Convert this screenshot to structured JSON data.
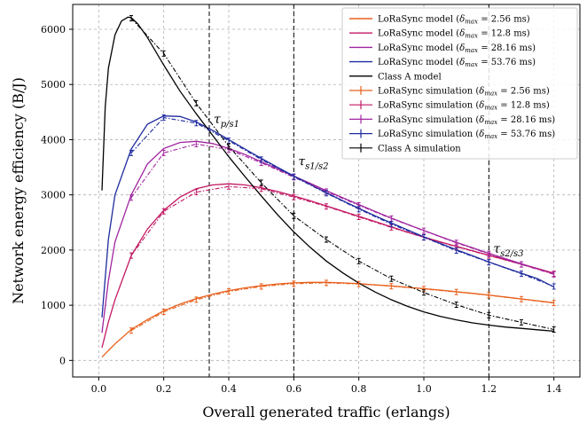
{
  "chart_data": {
    "type": "line",
    "xlabel": "Overall generated traffic (erlangs)",
    "ylabel": "Network energy efficiency (B/J)",
    "xlim": [
      -0.08,
      1.48
    ],
    "ylim": [
      -300,
      6450
    ],
    "xticks": [
      0.0,
      0.2,
      0.4,
      0.6,
      0.8,
      1.0,
      1.2,
      1.4
    ],
    "xtick_labels": [
      "0.0",
      "0.2",
      "0.4",
      "0.6",
      "0.8",
      "1.0",
      "1.2",
      "1.4"
    ],
    "yticks": [
      0,
      1000,
      2000,
      3000,
      4000,
      5000,
      6000
    ],
    "ytick_labels": [
      "0",
      "1000",
      "2000",
      "3000",
      "4000",
      "5000",
      "6000"
    ],
    "grid": true,
    "legend_position": "top-right",
    "vlines": [
      {
        "x": 0.34,
        "label_main": "τ",
        "label_sub": "p/s1",
        "label_y": 4300
      },
      {
        "x": 0.6,
        "label_main": "τ",
        "label_sub": "s1/s2",
        "label_y": 3530
      },
      {
        "x": 1.2,
        "label_main": "τ",
        "label_sub": "s2/s3",
        "label_y": 1950
      }
    ],
    "series": [
      {
        "name": "LoRaSync model",
        "delta": "2.56 ms",
        "kind": "model",
        "color": "#e8601c",
        "x": [
          0.01,
          0.03,
          0.05,
          0.1,
          0.15,
          0.2,
          0.25,
          0.3,
          0.35,
          0.4,
          0.45,
          0.5,
          0.55,
          0.6,
          0.65,
          0.7,
          0.75,
          0.8,
          0.85,
          0.9,
          0.95,
          1.0,
          1.05,
          1.1,
          1.15,
          1.2,
          1.25,
          1.3,
          1.35,
          1.4
        ],
        "y": [
          60,
          180,
          300,
          560,
          740,
          900,
          1020,
          1120,
          1200,
          1265,
          1315,
          1355,
          1385,
          1405,
          1415,
          1415,
          1405,
          1390,
          1370,
          1350,
          1325,
          1300,
          1275,
          1245,
          1215,
          1185,
          1150,
          1115,
          1080,
          1045
        ]
      },
      {
        "name": "LoRaSync model",
        "delta": "12.8 ms",
        "kind": "model",
        "color": "#c21863",
        "x": [
          0.01,
          0.03,
          0.05,
          0.1,
          0.15,
          0.2,
          0.25,
          0.3,
          0.35,
          0.4,
          0.45,
          0.5,
          0.55,
          0.6,
          0.65,
          0.7,
          0.75,
          0.8,
          0.85,
          0.9,
          0.95,
          1.0,
          1.05,
          1.1,
          1.15,
          1.2,
          1.25,
          1.3,
          1.35,
          1.4
        ],
        "y": [
          230,
          700,
          1100,
          1900,
          2380,
          2720,
          2960,
          3110,
          3180,
          3200,
          3180,
          3130,
          3060,
          2980,
          2895,
          2800,
          2705,
          2610,
          2515,
          2420,
          2325,
          2235,
          2150,
          2065,
          1985,
          1905,
          1825,
          1745,
          1665,
          1580
        ]
      },
      {
        "name": "LoRaSync model",
        "delta": "28.16 ms",
        "kind": "model",
        "color": "#a0249f",
        "x": [
          0.01,
          0.03,
          0.05,
          0.1,
          0.15,
          0.2,
          0.25,
          0.3,
          0.35,
          0.4,
          0.45,
          0.5,
          0.55,
          0.6,
          0.65,
          0.7,
          0.75,
          0.8,
          0.85,
          0.9,
          0.95,
          1.0,
          1.05,
          1.1,
          1.15,
          1.2,
          1.25,
          1.3,
          1.35,
          1.4
        ],
        "y": [
          500,
          1450,
          2150,
          3000,
          3560,
          3840,
          3950,
          3970,
          3930,
          3840,
          3730,
          3600,
          3470,
          3340,
          3210,
          3075,
          2950,
          2825,
          2700,
          2580,
          2465,
          2355,
          2245,
          2140,
          2040,
          1940,
          1845,
          1750,
          1660,
          1570
        ]
      },
      {
        "name": "LoRaSync model",
        "delta": "53.76 ms",
        "kind": "model",
        "color": "#1e2a9e",
        "x": [
          0.01,
          0.03,
          0.05,
          0.1,
          0.15,
          0.2,
          0.25,
          0.3,
          0.35,
          0.4,
          0.45,
          0.5,
          0.55,
          0.6,
          0.65,
          0.7,
          0.75,
          0.8,
          0.85,
          0.9,
          0.95,
          1.0,
          1.05,
          1.1,
          1.15,
          1.2,
          1.25,
          1.3,
          1.35,
          1.4
        ],
        "y": [
          780,
          2200,
          3000,
          3830,
          4280,
          4430,
          4420,
          4320,
          4170,
          4000,
          3830,
          3660,
          3500,
          3340,
          3190,
          3040,
          2895,
          2755,
          2620,
          2490,
          2365,
          2240,
          2120,
          2005,
          1895,
          1785,
          1680,
          1580,
          1480,
          1330
        ]
      },
      {
        "name": "Class A model",
        "delta": "",
        "kind": "model",
        "color": "#000000",
        "x": [
          0.01,
          0.02,
          0.03,
          0.05,
          0.07,
          0.09,
          0.1,
          0.12,
          0.15,
          0.2,
          0.25,
          0.3,
          0.35,
          0.4,
          0.45,
          0.5,
          0.55,
          0.6,
          0.65,
          0.7,
          0.75,
          0.8,
          0.85,
          0.9,
          0.95,
          1.0,
          1.05,
          1.1,
          1.15,
          1.2,
          1.25,
          1.3,
          1.35,
          1.4
        ],
        "y": [
          3080,
          4600,
          5300,
          5900,
          6150,
          6220,
          6210,
          6100,
          5850,
          5350,
          4880,
          4470,
          4080,
          3690,
          3330,
          2980,
          2640,
          2330,
          2050,
          1800,
          1590,
          1400,
          1240,
          1100,
          980,
          880,
          800,
          735,
          680,
          640,
          605,
          580,
          555,
          530
        ]
      },
      {
        "name": "LoRaSync simulation",
        "delta": "2.56 ms",
        "kind": "simulation",
        "color": "#e8601c",
        "x": [
          0.1,
          0.2,
          0.3,
          0.4,
          0.5,
          0.6,
          0.7,
          0.8,
          0.9,
          1.0,
          1.1,
          1.2,
          1.3,
          1.4
        ],
        "y": [
          540,
          880,
          1100,
          1250,
          1340,
          1390,
          1405,
          1385,
          1345,
          1295,
          1240,
          1180,
          1110,
          1040
        ]
      },
      {
        "name": "LoRaSync simulation",
        "delta": "12.8 ms",
        "kind": "simulation",
        "color": "#c21863",
        "x": [
          0.1,
          0.2,
          0.3,
          0.4,
          0.5,
          0.6,
          0.7,
          0.8,
          0.9,
          1.0,
          1.1,
          1.2,
          1.3,
          1.4
        ],
        "y": [
          1900,
          2700,
          3050,
          3150,
          3110,
          2960,
          2790,
          2600,
          2410,
          2230,
          2060,
          1900,
          1740,
          1570
        ]
      },
      {
        "name": "LoRaSync simulation",
        "delta": "28.16 ms",
        "kind": "simulation",
        "color": "#a0249f",
        "x": [
          0.1,
          0.2,
          0.3,
          0.4,
          0.5,
          0.6,
          0.7,
          0.8,
          0.9,
          1.0,
          1.1,
          1.2,
          1.3,
          1.4
        ],
        "y": [
          2950,
          3760,
          3920,
          3820,
          3580,
          3320,
          3060,
          2810,
          2570,
          2350,
          2130,
          1930,
          1740,
          1560
        ]
      },
      {
        "name": "LoRaSync simulation",
        "delta": "53.76 ms",
        "kind": "simulation",
        "color": "#1e2a9e",
        "x": [
          0.1,
          0.2,
          0.3,
          0.4,
          0.5,
          0.6,
          0.7,
          0.8,
          0.9,
          1.0,
          1.1,
          1.2,
          1.3,
          1.4
        ],
        "y": [
          3760,
          4400,
          4300,
          3980,
          3640,
          3330,
          3030,
          2740,
          2470,
          2230,
          1990,
          1780,
          1570,
          1340
        ]
      },
      {
        "name": "Class A simulation",
        "delta": "",
        "kind": "simulation",
        "color": "#000000",
        "x": [
          0.1,
          0.2,
          0.3,
          0.4,
          0.5,
          0.6,
          0.7,
          0.8,
          0.9,
          1.0,
          1.1,
          1.2,
          1.3,
          1.4
        ],
        "y": [
          6200,
          5560,
          4660,
          3880,
          3220,
          2620,
          2190,
          1800,
          1480,
          1230,
          1010,
          820,
          690,
          560
        ]
      }
    ],
    "legend": [
      {
        "name": "LoRaSync model",
        "delta": "2.56 ms",
        "color": "#e8601c",
        "kind": "model"
      },
      {
        "name": "LoRaSync model",
        "delta": "12.8 ms",
        "color": "#c21863",
        "kind": "model"
      },
      {
        "name": "LoRaSync model",
        "delta": "28.16 ms",
        "color": "#a0249f",
        "kind": "model"
      },
      {
        "name": "LoRaSync model",
        "delta": "53.76 ms",
        "color": "#1e2a9e",
        "kind": "model"
      },
      {
        "name": "Class A model",
        "delta": "",
        "color": "#000000",
        "kind": "model"
      },
      {
        "name": "LoRaSync simulation",
        "delta": "2.56 ms",
        "color": "#e8601c",
        "kind": "simulation"
      },
      {
        "name": "LoRaSync simulation",
        "delta": "12.8 ms",
        "color": "#c21863",
        "kind": "simulation"
      },
      {
        "name": "LoRaSync simulation",
        "delta": "28.16 ms",
        "color": "#a0249f",
        "kind": "simulation"
      },
      {
        "name": "LoRaSync simulation",
        "delta": "53.76 ms",
        "color": "#1e2a9e",
        "kind": "simulation"
      },
      {
        "name": "Class A simulation",
        "delta": "",
        "color": "#000000",
        "kind": "simulation"
      }
    ],
    "legend_delta_symbol": "δ",
    "legend_delta_sub": "max"
  }
}
